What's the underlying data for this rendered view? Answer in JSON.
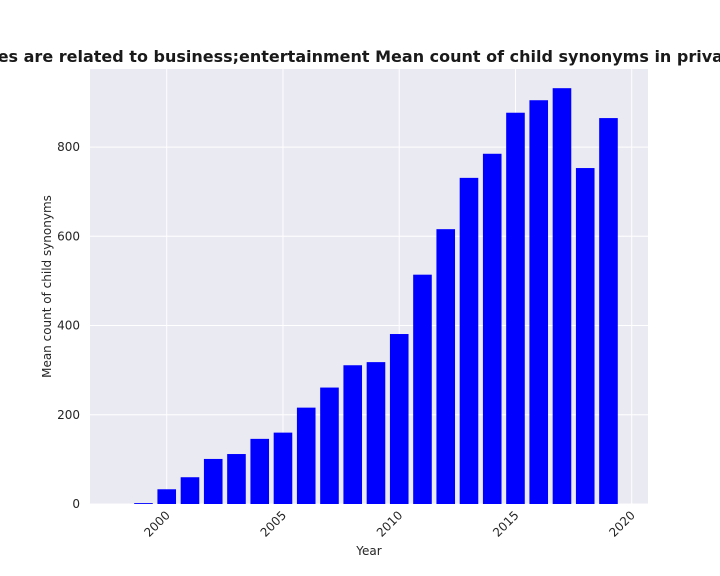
{
  "chart_data": {
    "type": "bar",
    "title": "Categories are related to business;entertainment Mean count of child synonyms in privacy policies",
    "xlabel": "Year",
    "ylabel": "Mean count of child synonyms",
    "x": [
      1999,
      2000,
      2001,
      2002,
      2003,
      2004,
      2005,
      2006,
      2007,
      2008,
      2009,
      2010,
      2011,
      2012,
      2013,
      2014,
      2015,
      2016,
      2017,
      2018,
      2019
    ],
    "values": [
      2,
      33,
      60,
      101,
      112,
      146,
      160,
      216,
      261,
      311,
      318,
      381,
      514,
      616,
      731,
      785,
      877,
      905,
      932,
      753,
      865
    ],
    "xlim": [
      1996.7,
      2020.7
    ],
    "ylim": [
      0,
      975
    ],
    "xticks": [
      2000,
      2005,
      2010,
      2015,
      2020
    ],
    "yticks": [
      0,
      200,
      400,
      600,
      800
    ],
    "bar_color": "#0000ff",
    "background": "#eaeaf2",
    "grid": true,
    "grid_color": "#ffffff"
  }
}
